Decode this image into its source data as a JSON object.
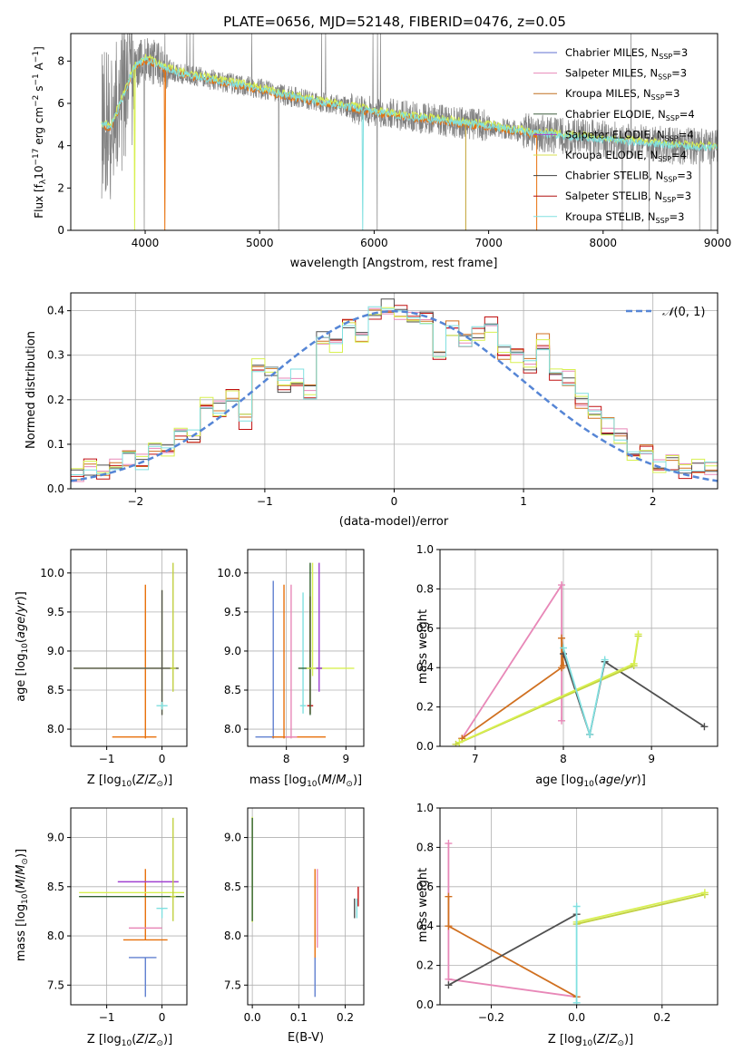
{
  "title": "PLATE=0656, MJD=52148, FIBERID=0476, z=0.05",
  "colors": {
    "gray": "#808080",
    "orange": "#e8700a",
    "yellow": "#d8f050",
    "cyan": "#80e0e0",
    "blue": "#6080d0",
    "pink": "#e888b8",
    "dkorange": "#d07020",
    "dkgray": "#505050",
    "purple": "#a040d0",
    "red": "#c01010",
    "green": "#306030",
    "lime": "#b0d050",
    "ygreen": "#c0d040"
  },
  "chart_data": [
    {
      "id": "spectrum",
      "type": "line",
      "xlabel": "wavelength [Angstrom, rest frame]",
      "ylabel": "Flux [f$_\\lambda$10$^{-17}$ erg cm$^{-2}$ s$^{-1}$ A$^{-1}$]",
      "xlim": [
        3350,
        9000
      ],
      "ylim": [
        0,
        9.3
      ],
      "xticks": [
        4000,
        5000,
        6000,
        7000,
        8000,
        9000
      ],
      "yticks": [
        0,
        2,
        4,
        6,
        8
      ],
      "grid": false,
      "legend_position": "top-right",
      "legend": [
        {
          "label": "Chabrier MILES, N",
          "sub": "SSP",
          "eq": "=3",
          "color": "#6070d0"
        },
        {
          "label": "Salpeter MILES, N",
          "sub": "SSP",
          "eq": "=3",
          "color": "#e888b8"
        },
        {
          "label": "Kroupa MILES, N",
          "sub": "SSP",
          "eq": "=3",
          "color": "#c07020"
        },
        {
          "label": "Chabrier ELODIE, N",
          "sub": "SSP",
          "eq": "=4",
          "color": "#406040"
        },
        {
          "label": "Salpeter ELODIE, N",
          "sub": "SSP",
          "eq": "=4",
          "color": "#a040d0"
        },
        {
          "label": "Kroupa ELODIE, N",
          "sub": "SSP",
          "eq": "=4",
          "color": "#d8e050"
        },
        {
          "label": "Chabrier STELIB, N",
          "sub": "SSP",
          "eq": "=3",
          "color": "#404040"
        },
        {
          "label": "Salpeter STELIB, N",
          "sub": "SSP",
          "eq": "=3",
          "color": "#b01010"
        },
        {
          "label": "Kroupa STELIB, N",
          "sub": "SSP",
          "eq": "=3",
          "color": "#80e0e0"
        }
      ],
      "continuum": {
        "x": [
          3620,
          3700,
          3800,
          3900,
          4000,
          4200,
          4400,
          4600,
          4800,
          5000,
          5200,
          5500,
          5800,
          6000,
          6200,
          6500,
          6800,
          7000,
          7200,
          7400,
          7600,
          7800,
          8000,
          8200,
          8400,
          8600,
          8800,
          9000
        ],
        "y": [
          5.0,
          4.9,
          6.2,
          7.7,
          8.1,
          7.6,
          7.3,
          7.1,
          6.9,
          6.7,
          6.4,
          6.1,
          5.8,
          5.6,
          5.45,
          5.25,
          5.05,
          4.95,
          4.75,
          4.6,
          4.5,
          4.4,
          4.3,
          4.2,
          4.1,
          4.0,
          3.95,
          3.9
        ]
      }
    },
    {
      "id": "residuals",
      "type": "line",
      "xlabel": "(data-model)/error",
      "ylabel": "Normed distribution",
      "xlim": [
        -2.5,
        2.5
      ],
      "ylim": [
        0,
        0.44
      ],
      "xticks": [
        -2,
        -1,
        0,
        1,
        2
      ],
      "yticks": [
        0.0,
        0.1,
        0.2,
        0.3,
        0.4
      ],
      "grid": true,
      "legend_position": "top-right",
      "legend_label": "$\\mathcal{N}(0, 1)$",
      "gaussian": {
        "mean": 0,
        "sigma": 1,
        "color": "#5585d5"
      },
      "hist_edges": [
        -2.5,
        -2.4,
        -2.3,
        -2.2,
        -2.1,
        -2.0,
        -1.9,
        -1.8,
        -1.7,
        -1.6,
        -1.5,
        -1.4,
        -1.3,
        -1.2,
        -1.1,
        -1.0,
        -0.9,
        -0.8,
        -0.7,
        -0.6,
        -0.5,
        -0.4,
        -0.3,
        -0.2,
        -0.1,
        0.0,
        0.1,
        0.2,
        0.3,
        0.4,
        0.5,
        0.6,
        0.7,
        0.8,
        0.9,
        1.0,
        1.1,
        1.2,
        1.3,
        1.4,
        1.5,
        1.6,
        1.7,
        1.8,
        1.9,
        2.0,
        2.1,
        2.2,
        2.3,
        2.4,
        2.5
      ],
      "hist_base": [
        0.03,
        0.05,
        0.04,
        0.05,
        0.07,
        0.06,
        0.09,
        0.08,
        0.13,
        0.12,
        0.19,
        0.18,
        0.21,
        0.15,
        0.28,
        0.27,
        0.23,
        0.25,
        0.22,
        0.34,
        0.32,
        0.38,
        0.34,
        0.4,
        0.41,
        0.4,
        0.38,
        0.39,
        0.3,
        0.36,
        0.33,
        0.35,
        0.37,
        0.31,
        0.3,
        0.28,
        0.33,
        0.25,
        0.25,
        0.2,
        0.17,
        0.14,
        0.12,
        0.08,
        0.09,
        0.05,
        0.06,
        0.04,
        0.05,
        0.05
      ],
      "hist_colors": [
        "#e888b8",
        "#d07020",
        "#c01010",
        "#505050",
        "#d8f050",
        "#80e0e0"
      ]
    },
    {
      "id": "age-vs-Z",
      "type": "scatter",
      "xlabel": "Z [log$_{10}$($Z/Z_\\odot$)]",
      "ylabel": "age  [log$_{10}$($age/yr$)]",
      "xlim": [
        -1.65,
        0.45
      ],
      "ylim": [
        7.78,
        10.3
      ],
      "xticks": [
        -1,
        0
      ],
      "yticks": [
        8.0,
        8.5,
        9.0,
        9.5,
        10.0
      ],
      "grid": true,
      "points": [
        {
          "x": -0.3,
          "y": 7.9,
          "xerr": [
            0.6,
            0.2
          ],
          "yerr": [
            0.02,
            1.95
          ],
          "color": "#e8700a"
        },
        {
          "x": 0.0,
          "y": 8.78,
          "xerr": [
            1.6,
            0.3
          ],
          "yerr": [
            0.6,
            1.0
          ],
          "color": "#d8f050"
        },
        {
          "x": 0.0,
          "y": 8.78,
          "xerr": [
            1.6,
            0.3
          ],
          "yerr": [
            0.6,
            1.0
          ],
          "color": "#505050"
        },
        {
          "x": 0.0,
          "y": 8.3,
          "xerr": [
            0.1,
            0.1
          ],
          "yerr": [
            0.05,
            0.05
          ],
          "color": "#80e0e0"
        },
        {
          "x": 0.2,
          "y": 8.78,
          "xerr": [
            0.05,
            0.05
          ],
          "yerr": [
            0.3,
            1.35
          ],
          "color": "#c0d040"
        }
      ]
    },
    {
      "id": "age-vs-mass",
      "type": "scatter",
      "xlabel": "mass [log$_{10}$($M/M_\\odot$)]",
      "ylabel": "",
      "xlim": [
        7.35,
        9.3
      ],
      "ylim": [
        7.78,
        10.3
      ],
      "xticks": [
        8,
        9
      ],
      "yticks": [
        8.0,
        8.5,
        9.0,
        9.5,
        10.0
      ],
      "grid": true,
      "points": [
        {
          "x": 7.78,
          "y": 7.9,
          "xerr": [
            0.3,
            0.3
          ],
          "yerr": [
            0.02,
            2.0
          ],
          "color": "#6080d0"
        },
        {
          "x": 7.96,
          "y": 7.9,
          "xerr": [
            0.2,
            0.7
          ],
          "yerr": [
            0.02,
            1.95
          ],
          "color": "#e8700a"
        },
        {
          "x": 8.08,
          "y": 7.9,
          "xerr": [
            0.1,
            0.1
          ],
          "yerr": [
            0.02,
            1.95
          ],
          "color": "#e888b8"
        },
        {
          "x": 8.28,
          "y": 8.3,
          "xerr": [
            0.05,
            0.05
          ],
          "yerr": [
            0.1,
            1.45
          ],
          "color": "#80e0e0"
        },
        {
          "x": 8.4,
          "y": 8.3,
          "xerr": [
            0.05,
            0.05
          ],
          "yerr": [
            0.1,
            1.4
          ],
          "color": "#c01010"
        },
        {
          "x": 8.4,
          "y": 8.78,
          "xerr": [
            0.2,
            0.2
          ],
          "yerr": [
            0.6,
            1.35
          ],
          "color": "#306030"
        },
        {
          "x": 8.44,
          "y": 8.78,
          "xerr": [
            0.1,
            0.7
          ],
          "yerr": [
            0.1,
            1.35
          ],
          "color": "#d8f050"
        },
        {
          "x": 8.55,
          "y": 8.78,
          "xerr": [
            0.05,
            0.05
          ],
          "yerr": [
            0.3,
            1.35
          ],
          "color": "#a040d0"
        }
      ]
    },
    {
      "id": "weight-vs-age",
      "type": "line",
      "xlabel": "age  [log$_{10}$($age/yr$)]",
      "ylabel": "mass weight",
      "xlim": [
        6.6,
        9.75
      ],
      "ylim": [
        0,
        1.0
      ],
      "xticks": [
        7,
        8,
        9
      ],
      "yticks": [
        0.0,
        0.2,
        0.4,
        0.6,
        0.8,
        1.0
      ],
      "grid": true,
      "series": [
        {
          "x": [
            6.85,
            7.98,
            7.98
          ],
          "y": [
            0.04,
            0.82,
            0.13
          ],
          "color": "#e888b8"
        },
        {
          "x": [
            6.85,
            7.98,
            7.98,
            8.0
          ],
          "y": [
            0.04,
            0.4,
            0.55,
            0.41
          ],
          "color": "#d07020"
        },
        {
          "x": [
            8.0,
            8.3,
            8.47,
            9.6
          ],
          "y": [
            0.47,
            0.06,
            0.43,
            0.1
          ],
          "color": "#505050"
        },
        {
          "x": [
            6.78,
            8.8,
            8.85
          ],
          "y": [
            0.01,
            0.41,
            0.56
          ],
          "color": "#c0d040"
        },
        {
          "x": [
            6.82,
            8.8,
            8.85
          ],
          "y": [
            0.02,
            0.42,
            0.57
          ],
          "color": "#d8f050"
        },
        {
          "x": [
            8.0,
            8.3,
            8.47
          ],
          "y": [
            0.5,
            0.06,
            0.44
          ],
          "color": "#80e0e0"
        }
      ]
    },
    {
      "id": "mass-vs-Z",
      "type": "scatter",
      "xlabel": "Z [log$_{10}$($Z/Z_\\odot$)]",
      "ylabel": "mass [log$_{10}$($M/M_\\odot$)]",
      "xlim": [
        -1.65,
        0.45
      ],
      "ylim": [
        7.3,
        9.3
      ],
      "xticks": [
        -1,
        0
      ],
      "yticks": [
        7.5,
        8.0,
        8.5,
        9.0
      ],
      "grid": true,
      "points": [
        {
          "x": -0.3,
          "y": 7.78,
          "xerr": [
            0.3,
            0.2
          ],
          "yerr": [
            0.4,
            0.0
          ],
          "color": "#6080d0"
        },
        {
          "x": -0.3,
          "y": 7.96,
          "xerr": [
            0.4,
            0.4
          ],
          "yerr": [
            0.0,
            0.72
          ],
          "color": "#e8700a"
        },
        {
          "x": -0.3,
          "y": 8.08,
          "xerr": [
            0.3,
            0.3
          ],
          "yerr": [
            0.0,
            0.0
          ],
          "color": "#e888b8"
        },
        {
          "x": 0.0,
          "y": 8.28,
          "xerr": [
            0.1,
            0.1
          ],
          "yerr": [
            0.1,
            0.0
          ],
          "color": "#80e0e0"
        },
        {
          "x": 0.0,
          "y": 8.4,
          "xerr": [
            1.5,
            0.4
          ],
          "yerr": [
            0.0,
            0.0
          ],
          "color": "#306030"
        },
        {
          "x": 0.0,
          "y": 8.44,
          "xerr": [
            1.5,
            0.4
          ],
          "yerr": [
            0.0,
            0.0
          ],
          "color": "#d8f050"
        },
        {
          "x": 0.0,
          "y": 8.55,
          "xerr": [
            0.8,
            0.3
          ],
          "yerr": [
            0.0,
            0.0
          ],
          "color": "#a040d0"
        },
        {
          "x": 0.2,
          "y": 8.4,
          "xerr": [
            0.05,
            0.05
          ],
          "yerr": [
            0.25,
            0.8
          ],
          "color": "#c0d040"
        }
      ]
    },
    {
      "id": "mass-vs-EBV",
      "type": "scatter",
      "xlabel": "E(B-V)",
      "ylabel": "",
      "xlim": [
        -0.01,
        0.24
      ],
      "ylim": [
        7.3,
        9.3
      ],
      "xticks": [
        0.0,
        0.1,
        0.2
      ],
      "yticks": [
        7.5,
        8.0,
        8.5,
        9.0
      ],
      "grid": true,
      "points": [
        {
          "x": 0.0,
          "y": 8.44,
          "xerr": [
            0,
            0
          ],
          "yerr": [
            0.3,
            0.77
          ],
          "color": "#d8f050"
        },
        {
          "x": 0.0,
          "y": 8.4,
          "xerr": [
            0,
            0
          ],
          "yerr": [
            0.25,
            0.8
          ],
          "color": "#306030"
        },
        {
          "x": 0.135,
          "y": 7.96,
          "xerr": [
            0,
            0
          ],
          "yerr": [
            0.2,
            0.72
          ],
          "color": "#e8700a"
        },
        {
          "x": 0.135,
          "y": 7.78,
          "xerr": [
            0,
            0
          ],
          "yerr": [
            0.4,
            0.0
          ],
          "color": "#6080d0"
        },
        {
          "x": 0.14,
          "y": 8.08,
          "xerr": [
            0,
            0
          ],
          "yerr": [
            0.2,
            0.6
          ],
          "color": "#e888b8"
        },
        {
          "x": 0.22,
          "y": 8.28,
          "xerr": [
            0,
            0
          ],
          "yerr": [
            0.1,
            0.1
          ],
          "color": "#505050"
        },
        {
          "x": 0.225,
          "y": 8.28,
          "xerr": [
            0,
            0
          ],
          "yerr": [
            0.1,
            0.1
          ],
          "color": "#80e0e0"
        },
        {
          "x": 0.228,
          "y": 8.4,
          "xerr": [
            0,
            0
          ],
          "yerr": [
            0.1,
            0.1
          ],
          "color": "#c01010"
        }
      ]
    },
    {
      "id": "weight-vs-Z",
      "type": "line",
      "xlabel": "Z [log$_{10}$($Z/Z_\\odot$)]",
      "ylabel": "mass weight",
      "xlim": [
        -0.32,
        0.33
      ],
      "ylim": [
        0,
        1.0
      ],
      "xticks": [
        -0.2,
        0.0,
        0.2
      ],
      "yticks": [
        0.0,
        0.2,
        0.4,
        0.6,
        0.8,
        1.0
      ],
      "grid": true,
      "series": [
        {
          "x": [
            -0.3,
            -0.3,
            0.0
          ],
          "y": [
            0.82,
            0.13,
            0.04
          ],
          "color": "#e888b8"
        },
        {
          "x": [
            -0.3,
            -0.3,
            0.0
          ],
          "y": [
            0.55,
            0.4,
            0.04
          ],
          "color": "#d07020"
        },
        {
          "x": [
            -0.3,
            0.0
          ],
          "y": [
            0.1,
            0.46
          ],
          "color": "#505050"
        },
        {
          "x": [
            0.0,
            0.3
          ],
          "y": [
            0.41,
            0.56
          ],
          "color": "#c0d040"
        },
        {
          "x": [
            0.0,
            0.3
          ],
          "y": [
            0.42,
            0.57
          ],
          "color": "#d8f050"
        },
        {
          "x": [
            0.0,
            0.0
          ],
          "y": [
            0.5,
            0.01
          ],
          "color": "#80e0e0"
        }
      ]
    }
  ]
}
